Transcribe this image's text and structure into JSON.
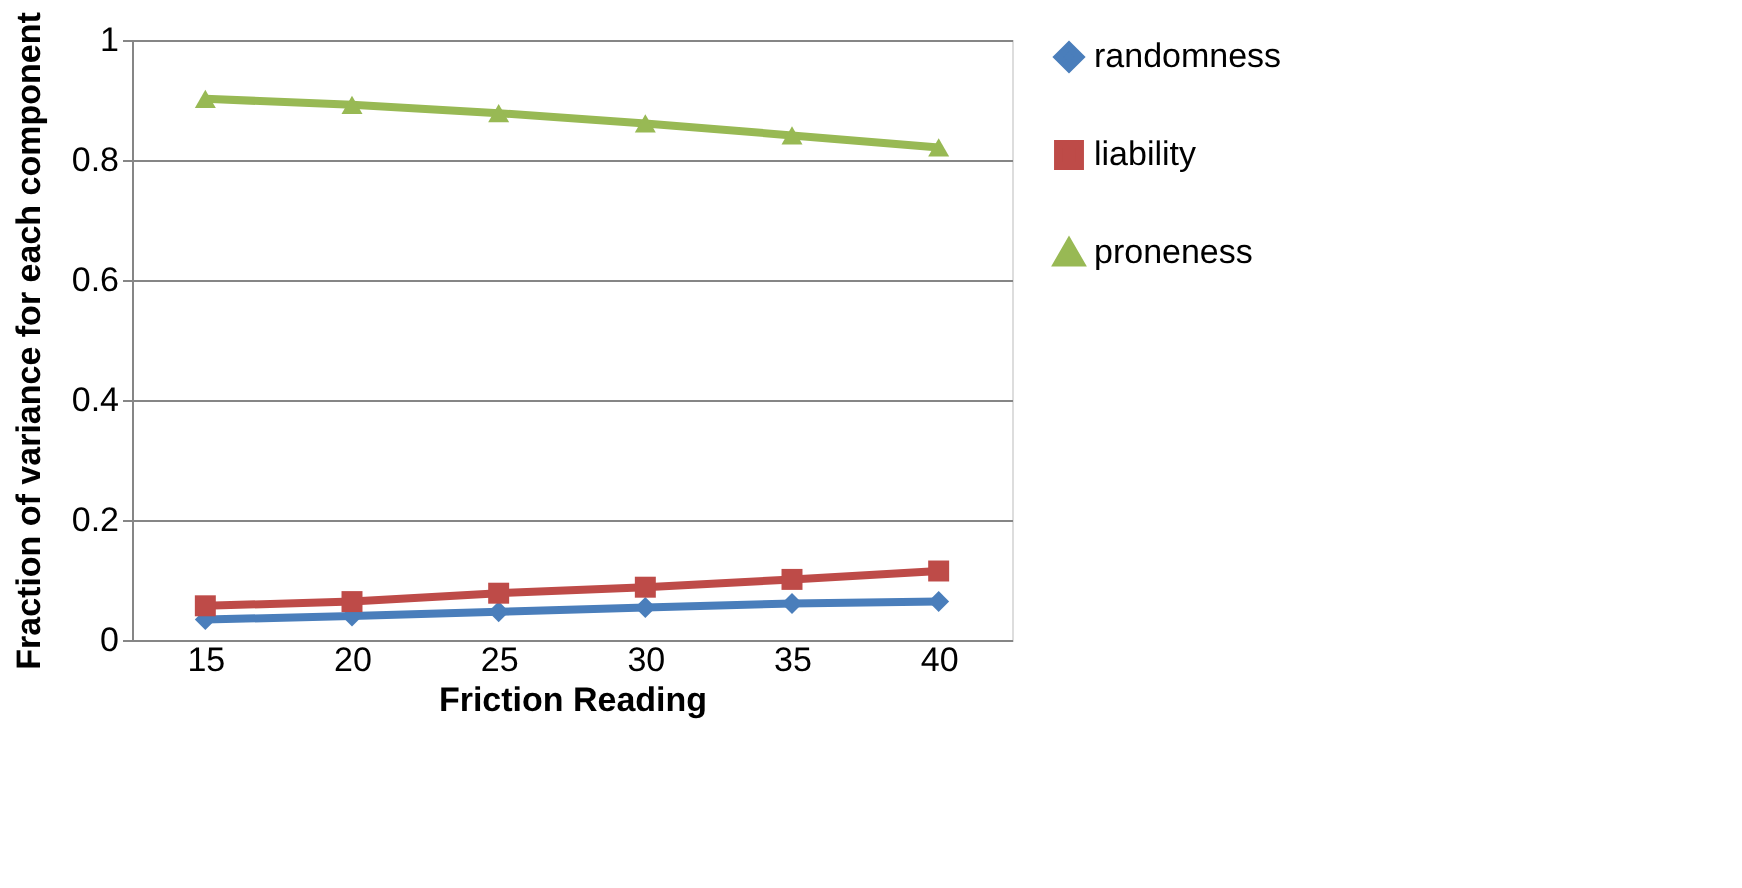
{
  "chart_data": {
    "type": "line",
    "xlabel": "Friction Reading",
    "ylabel": "Fraction of variance for each component",
    "categories": [
      "15",
      "20",
      "25",
      "30",
      "35",
      "40"
    ],
    "series": [
      {
        "name": "randomness",
        "color": "#4a7ebb",
        "marker": "diamond",
        "values": [
          0.034,
          0.04,
          0.047,
          0.054,
          0.061,
          0.064
        ]
      },
      {
        "name": "liability",
        "color": "#be4b48",
        "marker": "square",
        "values": [
          0.057,
          0.064,
          0.078,
          0.088,
          0.101,
          0.115
        ]
      },
      {
        "name": "proneness",
        "color": "#98b954",
        "marker": "triangle",
        "values": [
          0.902,
          0.892,
          0.878,
          0.861,
          0.841,
          0.821
        ]
      }
    ],
    "ylim": [
      0,
      1
    ],
    "yticks": [
      0,
      0.2,
      0.4,
      0.6,
      0.8,
      1
    ],
    "grid": "y",
    "legend": "right",
    "line_style": "solid"
  }
}
